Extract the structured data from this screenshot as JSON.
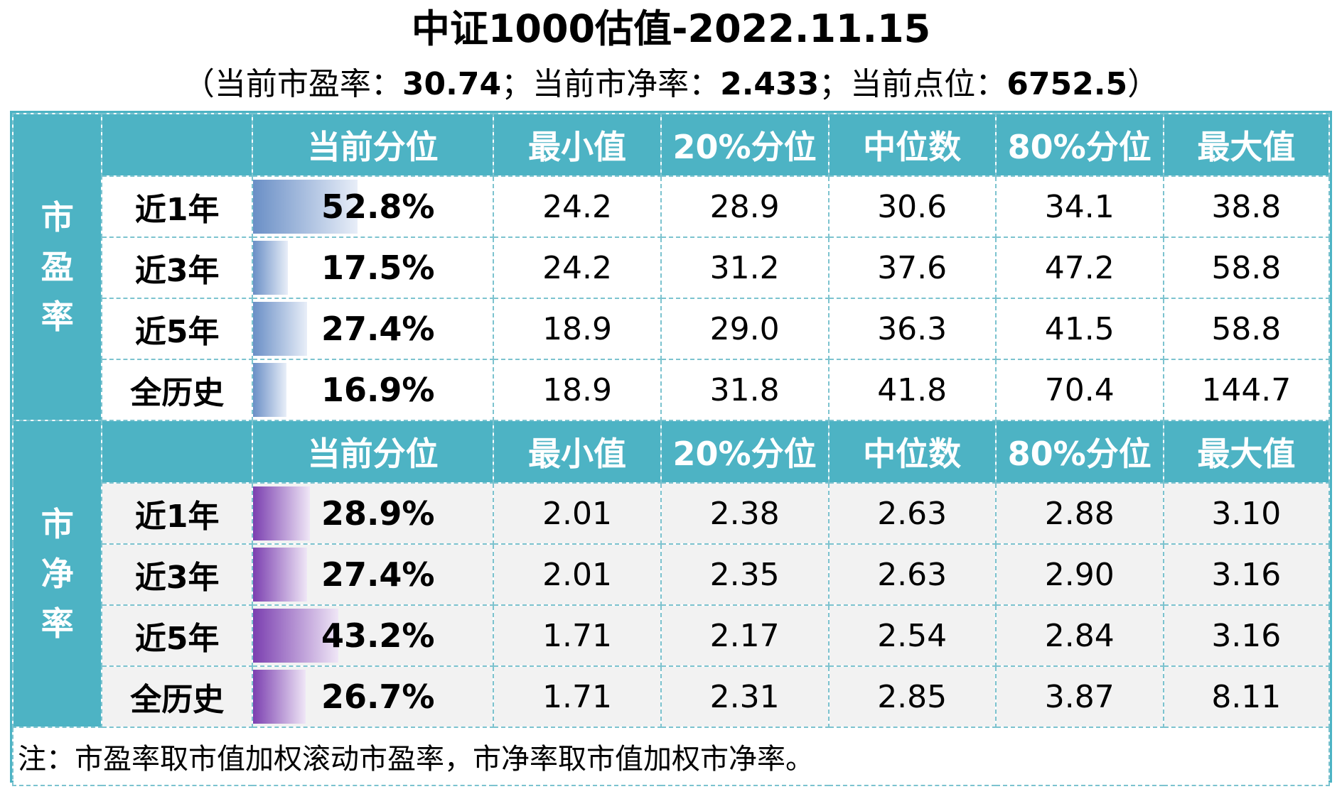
{
  "chart_data": {
    "type": "table",
    "title": "中证1000估值-2022.11.15",
    "subtitle": {
      "open": "（",
      "pe_label": "当前市盈率：",
      "pe_value": "30.74",
      "sep1": "；",
      "pb_label": "当前市净率：",
      "pb_value": "2.433",
      "sep2": "；",
      "point_label": "当前点位：",
      "point_value": "6752.5",
      "close": "）"
    },
    "columns": [
      "当前分位",
      "最小值",
      "20%分位",
      "中位数",
      "80%分位",
      "最大值"
    ],
    "sections": [
      {
        "label": [
          "市",
          "盈",
          "率"
        ],
        "rows": [
          {
            "period": "近1年",
            "percentile": "52.8%",
            "pct_value": 52.8,
            "values": [
              "24.2",
              "28.9",
              "30.6",
              "34.1",
              "38.8"
            ]
          },
          {
            "period": "近3年",
            "percentile": "17.5%",
            "pct_value": 17.5,
            "values": [
              "24.2",
              "31.2",
              "37.6",
              "47.2",
              "58.8"
            ]
          },
          {
            "period": "近5年",
            "percentile": "27.4%",
            "pct_value": 27.4,
            "values": [
              "18.9",
              "29.0",
              "36.3",
              "41.5",
              "58.8"
            ]
          },
          {
            "period": "全历史",
            "percentile": "16.9%",
            "pct_value": 16.9,
            "values": [
              "18.9",
              "31.8",
              "41.8",
              "70.4",
              "144.7"
            ]
          }
        ]
      },
      {
        "label": [
          "市",
          "净",
          "率"
        ],
        "rows": [
          {
            "period": "近1年",
            "percentile": "28.9%",
            "pct_value": 28.9,
            "values": [
              "2.01",
              "2.38",
              "2.63",
              "2.88",
              "3.10"
            ]
          },
          {
            "period": "近3年",
            "percentile": "27.4%",
            "pct_value": 27.4,
            "values": [
              "2.01",
              "2.35",
              "2.63",
              "2.90",
              "3.16"
            ]
          },
          {
            "period": "近5年",
            "percentile": "43.2%",
            "pct_value": 43.2,
            "values": [
              "1.71",
              "2.17",
              "2.54",
              "2.84",
              "3.16"
            ]
          },
          {
            "period": "全历史",
            "percentile": "26.7%",
            "pct_value": 26.7,
            "values": [
              "1.71",
              "2.31",
              "2.85",
              "3.87",
              "8.11"
            ]
          }
        ]
      }
    ],
    "note": "注：市盈率取市值加权滚动市盈率，市净率取市值加权市净率。",
    "colors": {
      "header": "#4db3c4",
      "pe_bar": "#6a8fc6",
      "pb_bar": "#7b3fb0",
      "pb_row_bg": "#f2f2f2"
    }
  }
}
